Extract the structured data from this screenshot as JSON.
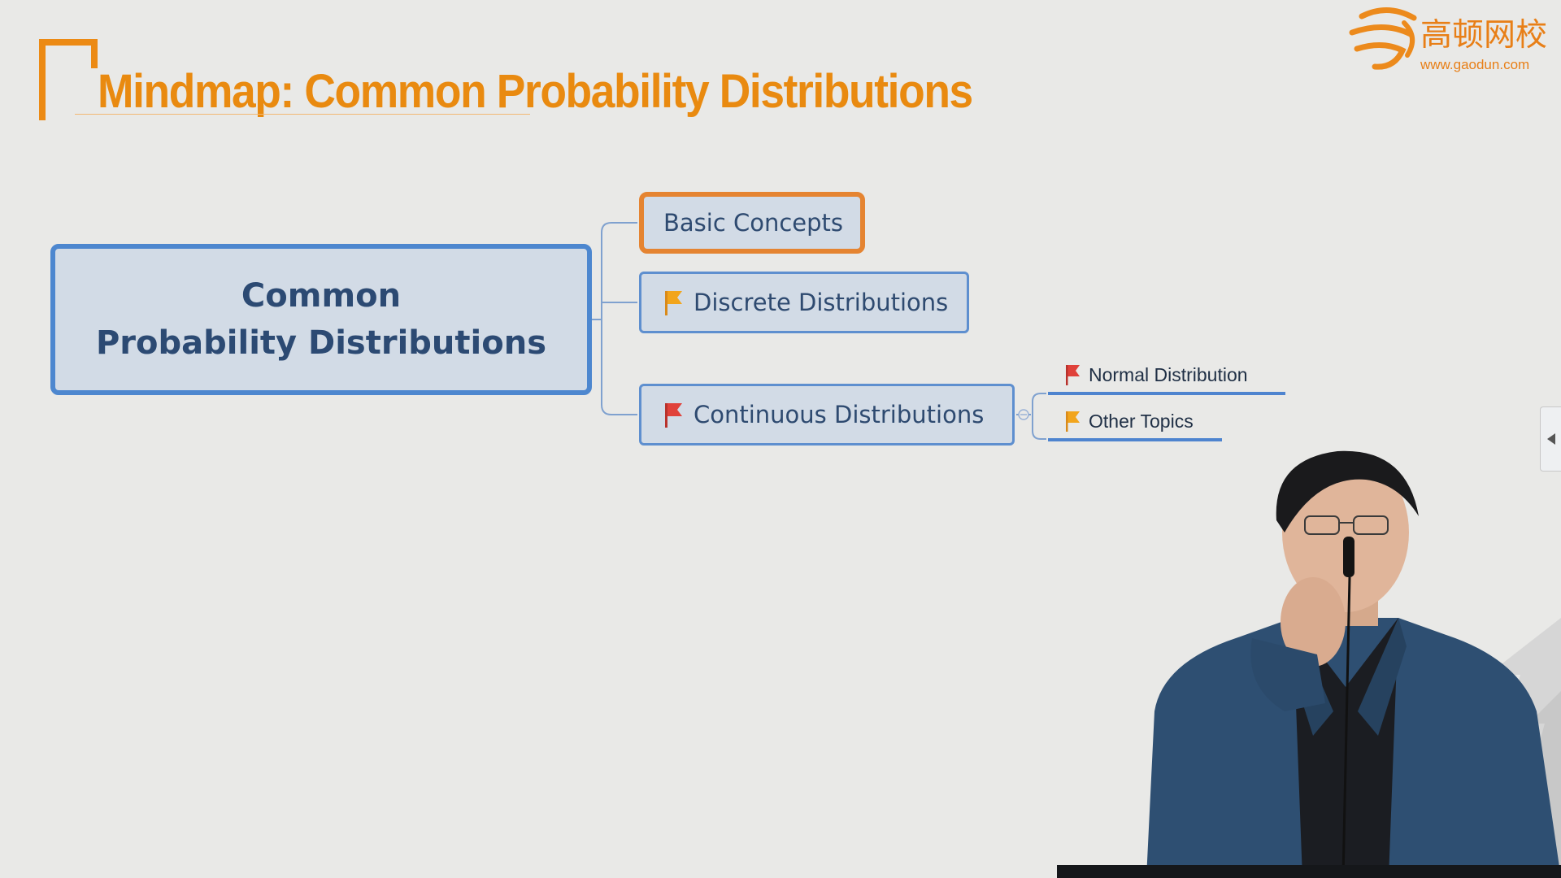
{
  "slide": {
    "title": "Mindmap: Common Probability Distributions"
  },
  "logo": {
    "name_cn": "高顿网校",
    "url": "www.gaodun.com"
  },
  "mindmap": {
    "central_topic": {
      "line1": "Common",
      "line2": "Probability Distributions"
    },
    "topics": [
      {
        "label": "Basic Concepts",
        "flag": null,
        "selected": true
      },
      {
        "label": "Discrete Distributions",
        "flag": "orange-flag-icon"
      },
      {
        "label": "Continuous Distributions",
        "flag": "red-flag-icon",
        "subtopics": [
          {
            "label": "Normal Distribution",
            "flag": "red-flag-icon"
          },
          {
            "label": "Other Topics",
            "flag": "orange-flag-icon"
          }
        ]
      }
    ]
  },
  "colors": {
    "title": "#e98a10",
    "node_fill": "#d2dbe6",
    "node_border": "#5e8fcf",
    "selected_border": "#e58431",
    "flag_red": "#e0413a",
    "flag_orange": "#f2a51c"
  }
}
